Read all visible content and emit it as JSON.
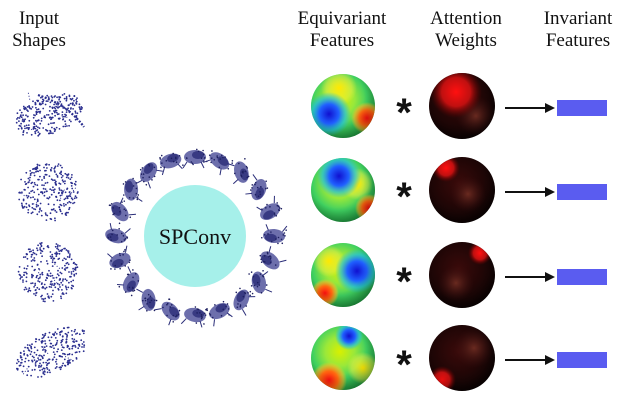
{
  "headers": {
    "input": [
      "Input",
      "Shapes"
    ],
    "equivariant": [
      "Equivariant",
      "Features"
    ],
    "attention": [
      "Attention",
      "Weights"
    ],
    "invariant": [
      "Invariant",
      "Features"
    ]
  },
  "center_label": "SPConv",
  "operator_symbol": "*",
  "row_count": 4,
  "colors": {
    "point_cloud": "#2b2f8f",
    "spconv_circle": "#a6f0ea",
    "invariant_bar": "#5a5cf0",
    "arrow": "#111111",
    "attention_dark": "#1a0000",
    "attention_hot": "#e01010"
  }
}
